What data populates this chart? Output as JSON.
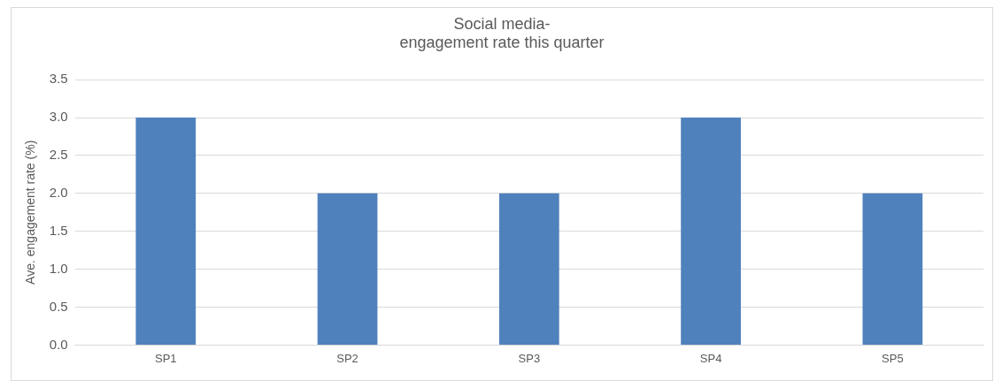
{
  "chart_data": {
    "type": "bar",
    "title": "Social media-\nengagement rate this quarter",
    "ylabel": "Ave. engagement rate (%)",
    "categories": [
      "SP1",
      "SP2",
      "SP3",
      "SP4",
      "SP5"
    ],
    "values": [
      3,
      2,
      2,
      3,
      2
    ],
    "color": "#4f81bd",
    "ylim": [
      0,
      3.5
    ],
    "yticks": [
      {
        "value": 0,
        "label": "0.0"
      },
      {
        "value": 0.5,
        "label": "0.5"
      },
      {
        "value": 1,
        "label": "1.0"
      },
      {
        "value": 1.5,
        "label": "1.5"
      },
      {
        "value": 2,
        "label": "2.0"
      },
      {
        "value": 2.5,
        "label": "2.5"
      },
      {
        "value": 3,
        "label": "3.0"
      },
      {
        "value": 3.5,
        "label": "3.5"
      }
    ],
    "grid": "y",
    "legend": false
  }
}
